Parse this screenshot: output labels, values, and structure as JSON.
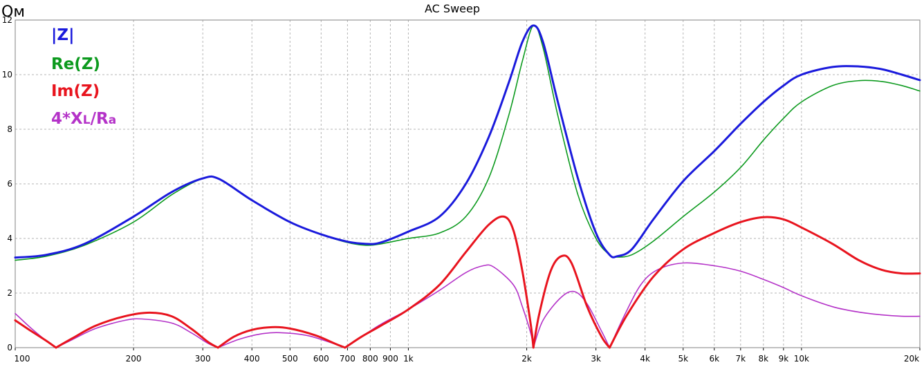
{
  "chart_data": {
    "type": "line",
    "title": "AC Sweep",
    "ylabel": "Ом",
    "xlabel": "",
    "x_scale": "log",
    "xlim": [
      100,
      20000
    ],
    "ylim": [
      0,
      12
    ],
    "grid": true,
    "legend_position": "top-left",
    "x_ticks": [
      {
        "value": 100,
        "label": "100"
      },
      {
        "value": 200,
        "label": "200"
      },
      {
        "value": 300,
        "label": "300"
      },
      {
        "value": 400,
        "label": "400"
      },
      {
        "value": 500,
        "label": "500"
      },
      {
        "value": 600,
        "label": "600"
      },
      {
        "value": 700,
        "label": "700"
      },
      {
        "value": 800,
        "label": "800"
      },
      {
        "value": 900,
        "label": "900"
      },
      {
        "value": 1000,
        "label": "1k"
      },
      {
        "value": 2000,
        "label": "2k"
      },
      {
        "value": 3000,
        "label": "3k"
      },
      {
        "value": 4000,
        "label": "4k"
      },
      {
        "value": 5000,
        "label": "5k"
      },
      {
        "value": 6000,
        "label": "6k"
      },
      {
        "value": 7000,
        "label": "7k"
      },
      {
        "value": 8000,
        "label": "8k"
      },
      {
        "value": 9000,
        "label": "9k"
      },
      {
        "value": 10000,
        "label": "10k"
      },
      {
        "value": 20000,
        "label": "20k"
      }
    ],
    "y_ticks": [
      {
        "value": 0,
        "label": "0"
      },
      {
        "value": 2,
        "label": "2"
      },
      {
        "value": 4,
        "label": "4"
      },
      {
        "value": 6,
        "label": "6"
      },
      {
        "value": 8,
        "label": "8"
      },
      {
        "value": 10,
        "label": "10"
      },
      {
        "value": 12,
        "label": "12"
      }
    ],
    "series": [
      {
        "name": "|Z|",
        "color": "#1a1adc",
        "points": [
          [
            100,
            3.3
          ],
          [
            120,
            3.4
          ],
          [
            150,
            3.8
          ],
          [
            200,
            4.8
          ],
          [
            250,
            5.7
          ],
          [
            300,
            6.2
          ],
          [
            330,
            6.18
          ],
          [
            400,
            5.4
          ],
          [
            500,
            4.6
          ],
          [
            600,
            4.15
          ],
          [
            700,
            3.88
          ],
          [
            780,
            3.8
          ],
          [
            850,
            3.85
          ],
          [
            1000,
            4.25
          ],
          [
            1200,
            4.8
          ],
          [
            1400,
            6.0
          ],
          [
            1600,
            7.7
          ],
          [
            1800,
            9.7
          ],
          [
            1950,
            11.2
          ],
          [
            2080,
            11.8
          ],
          [
            2200,
            11.2
          ],
          [
            2400,
            9.0
          ],
          [
            2700,
            6.2
          ],
          [
            3000,
            4.2
          ],
          [
            3250,
            3.4
          ],
          [
            3400,
            3.35
          ],
          [
            3700,
            3.6
          ],
          [
            4200,
            4.7
          ],
          [
            5000,
            6.1
          ],
          [
            6000,
            7.2
          ],
          [
            7000,
            8.2
          ],
          [
            8000,
            9.0
          ],
          [
            9000,
            9.6
          ],
          [
            10000,
            10.0
          ],
          [
            12000,
            10.28
          ],
          [
            14000,
            10.3
          ],
          [
            16000,
            10.2
          ],
          [
            18000,
            10.0
          ],
          [
            20000,
            9.8
          ]
        ]
      },
      {
        "name": "Re(Z)",
        "color": "#0c9a1e",
        "points": [
          [
            100,
            3.2
          ],
          [
            120,
            3.35
          ],
          [
            150,
            3.75
          ],
          [
            200,
            4.6
          ],
          [
            250,
            5.6
          ],
          [
            300,
            6.2
          ],
          [
            330,
            6.18
          ],
          [
            400,
            5.4
          ],
          [
            500,
            4.6
          ],
          [
            600,
            4.15
          ],
          [
            700,
            3.85
          ],
          [
            780,
            3.75
          ],
          [
            850,
            3.8
          ],
          [
            1000,
            4.0
          ],
          [
            1200,
            4.2
          ],
          [
            1400,
            4.8
          ],
          [
            1600,
            6.2
          ],
          [
            1800,
            8.5
          ],
          [
            1950,
            10.5
          ],
          [
            2080,
            11.8
          ],
          [
            2200,
            11.0
          ],
          [
            2400,
            8.5
          ],
          [
            2700,
            5.6
          ],
          [
            3000,
            4.0
          ],
          [
            3250,
            3.4
          ],
          [
            3400,
            3.32
          ],
          [
            3700,
            3.4
          ],
          [
            4200,
            3.9
          ],
          [
            5000,
            4.8
          ],
          [
            6000,
            5.7
          ],
          [
            7000,
            6.6
          ],
          [
            8000,
            7.6
          ],
          [
            9000,
            8.4
          ],
          [
            10000,
            9.0
          ],
          [
            12000,
            9.6
          ],
          [
            14000,
            9.78
          ],
          [
            16000,
            9.75
          ],
          [
            18000,
            9.6
          ],
          [
            20000,
            9.4
          ]
        ]
      },
      {
        "name": "Im(Z)",
        "color": "#e8141e",
        "points": [
          [
            100,
            1.0
          ],
          [
            110,
            0.6
          ],
          [
            120,
            0.25
          ],
          [
            127,
            0.0
          ],
          [
            140,
            0.35
          ],
          [
            160,
            0.8
          ],
          [
            190,
            1.15
          ],
          [
            220,
            1.28
          ],
          [
            250,
            1.15
          ],
          [
            280,
            0.7
          ],
          [
            310,
            0.2
          ],
          [
            328,
            0.0
          ],
          [
            360,
            0.4
          ],
          [
            400,
            0.65
          ],
          [
            450,
            0.75
          ],
          [
            500,
            0.7
          ],
          [
            580,
            0.45
          ],
          [
            650,
            0.15
          ],
          [
            690,
            0.0
          ],
          [
            760,
            0.4
          ],
          [
            850,
            0.8
          ],
          [
            1000,
            1.4
          ],
          [
            1200,
            2.3
          ],
          [
            1400,
            3.5
          ],
          [
            1600,
            4.5
          ],
          [
            1750,
            4.8
          ],
          [
            1850,
            4.3
          ],
          [
            1950,
            2.8
          ],
          [
            2050,
            0.8
          ],
          [
            2080,
            0.0
          ],
          [
            2150,
            1.2
          ],
          [
            2300,
            2.8
          ],
          [
            2450,
            3.35
          ],
          [
            2600,
            3.1
          ],
          [
            2850,
            1.5
          ],
          [
            3100,
            0.4
          ],
          [
            3250,
            0.0
          ],
          [
            3600,
            1.2
          ],
          [
            4200,
            2.6
          ],
          [
            5000,
            3.6
          ],
          [
            6000,
            4.2
          ],
          [
            7000,
            4.6
          ],
          [
            8000,
            4.78
          ],
          [
            9000,
            4.7
          ],
          [
            10000,
            4.4
          ],
          [
            12000,
            3.8
          ],
          [
            14000,
            3.2
          ],
          [
            16000,
            2.85
          ],
          [
            18000,
            2.72
          ],
          [
            20000,
            2.72
          ]
        ]
      },
      {
        "name": "4*XL/Ra",
        "color": "#b432c8",
        "points": [
          [
            100,
            1.25
          ],
          [
            110,
            0.7
          ],
          [
            120,
            0.25
          ],
          [
            127,
            0.0
          ],
          [
            140,
            0.3
          ],
          [
            160,
            0.7
          ],
          [
            190,
            1.0
          ],
          [
            210,
            1.05
          ],
          [
            250,
            0.9
          ],
          [
            280,
            0.55
          ],
          [
            310,
            0.15
          ],
          [
            328,
            0.0
          ],
          [
            370,
            0.3
          ],
          [
            420,
            0.5
          ],
          [
            470,
            0.55
          ],
          [
            550,
            0.45
          ],
          [
            630,
            0.2
          ],
          [
            690,
            0.0
          ],
          [
            760,
            0.4
          ],
          [
            850,
            0.85
          ],
          [
            1000,
            1.4
          ],
          [
            1200,
            2.1
          ],
          [
            1400,
            2.75
          ],
          [
            1550,
            3.0
          ],
          [
            1650,
            2.95
          ],
          [
            1850,
            2.3
          ],
          [
            1950,
            1.5
          ],
          [
            2050,
            0.5
          ],
          [
            2080,
            0.0
          ],
          [
            2200,
            1.0
          ],
          [
            2450,
            1.85
          ],
          [
            2650,
            2.05
          ],
          [
            2850,
            1.6
          ],
          [
            3100,
            0.6
          ],
          [
            3250,
            0.0
          ],
          [
            3550,
            1.2
          ],
          [
            3900,
            2.3
          ],
          [
            4300,
            2.85
          ],
          [
            5000,
            3.1
          ],
          [
            6000,
            3.0
          ],
          [
            7000,
            2.8
          ],
          [
            8000,
            2.5
          ],
          [
            9000,
            2.2
          ],
          [
            10000,
            1.9
          ],
          [
            12000,
            1.5
          ],
          [
            14000,
            1.3
          ],
          [
            16000,
            1.2
          ],
          [
            18000,
            1.15
          ],
          [
            20000,
            1.15
          ]
        ]
      }
    ]
  }
}
